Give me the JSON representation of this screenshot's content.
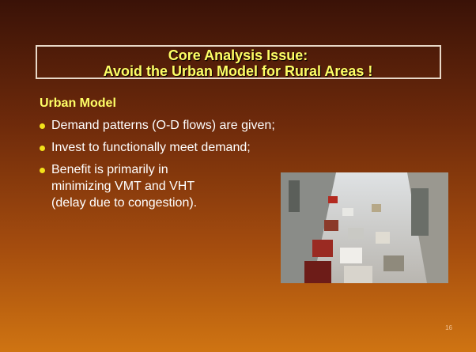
{
  "header": {
    "title_lines": [
      "Core Analysis Issue:",
      "Avoid the Urban Model for Rural Areas !"
    ]
  },
  "subheading": "Urban Model",
  "bullets": [
    [
      "Demand patterns (O-D flows) are given;"
    ],
    [
      "Invest to functionally meet demand;"
    ],
    [
      "Benefit is primarily in",
      "minimizing VMT and VHT",
      "(delay due to congestion)."
    ]
  ],
  "page_number": "16"
}
